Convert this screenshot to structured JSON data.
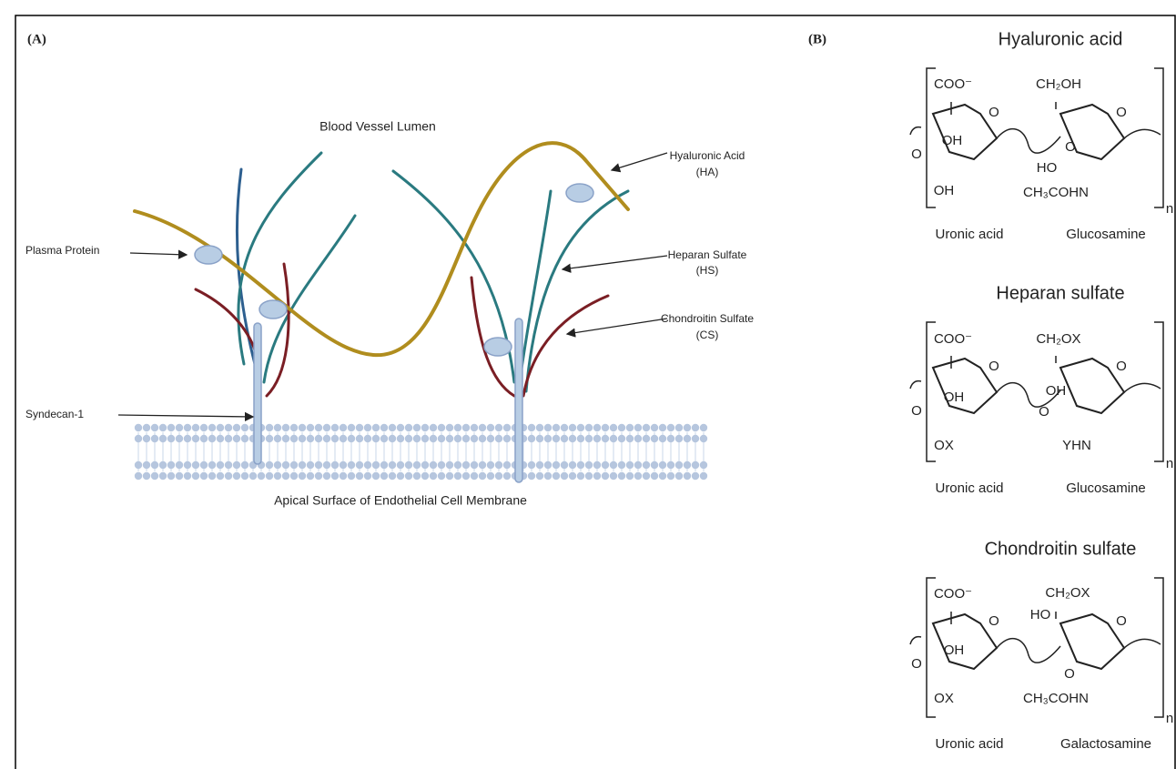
{
  "panel_a": {
    "label": "(A)",
    "top_label": "Blood Vessel Lumen",
    "bottom_label": "Apical Surface of Endothelial Cell Membrane",
    "annotations": [
      {
        "label": "Hyaluronic Acid",
        "abbr": "(HA)"
      },
      {
        "label": "Heparan Sulfate",
        "abbr": "(HS)"
      },
      {
        "label": "Chondroitin Sulfate",
        "abbr": "(CS)"
      },
      {
        "label": "Plasma Protein"
      },
      {
        "label": "Syndecan-1"
      }
    ]
  },
  "panel_b": {
    "label": "(B)",
    "structures": [
      {
        "title": "Hyaluronic acid",
        "left_unit": "Uronic acid",
        "right_unit": "Glucosamine",
        "groups": [
          "COO⁻",
          "O",
          "OH",
          "O",
          "OH",
          "CH₂OH",
          "O",
          "HO",
          "O",
          "CH₃COHN",
          "n"
        ]
      },
      {
        "title": "Heparan sulfate",
        "left_unit": "Uronic acid",
        "right_unit": "Glucosamine",
        "groups": [
          "COO⁻",
          "O",
          "OH",
          "O",
          "OX",
          "CH₂OX",
          "O",
          "OH",
          "O",
          "YHN",
          "n"
        ]
      },
      {
        "title": "Chondroitin sulfate",
        "left_unit": "Uronic acid",
        "right_unit": "Galactosamine",
        "groups": [
          "COO⁻",
          "O",
          "OH",
          "O",
          "OX",
          "CH₂OX",
          "HO",
          "O",
          "O",
          "CH₃COHN",
          "n"
        ]
      }
    ]
  }
}
